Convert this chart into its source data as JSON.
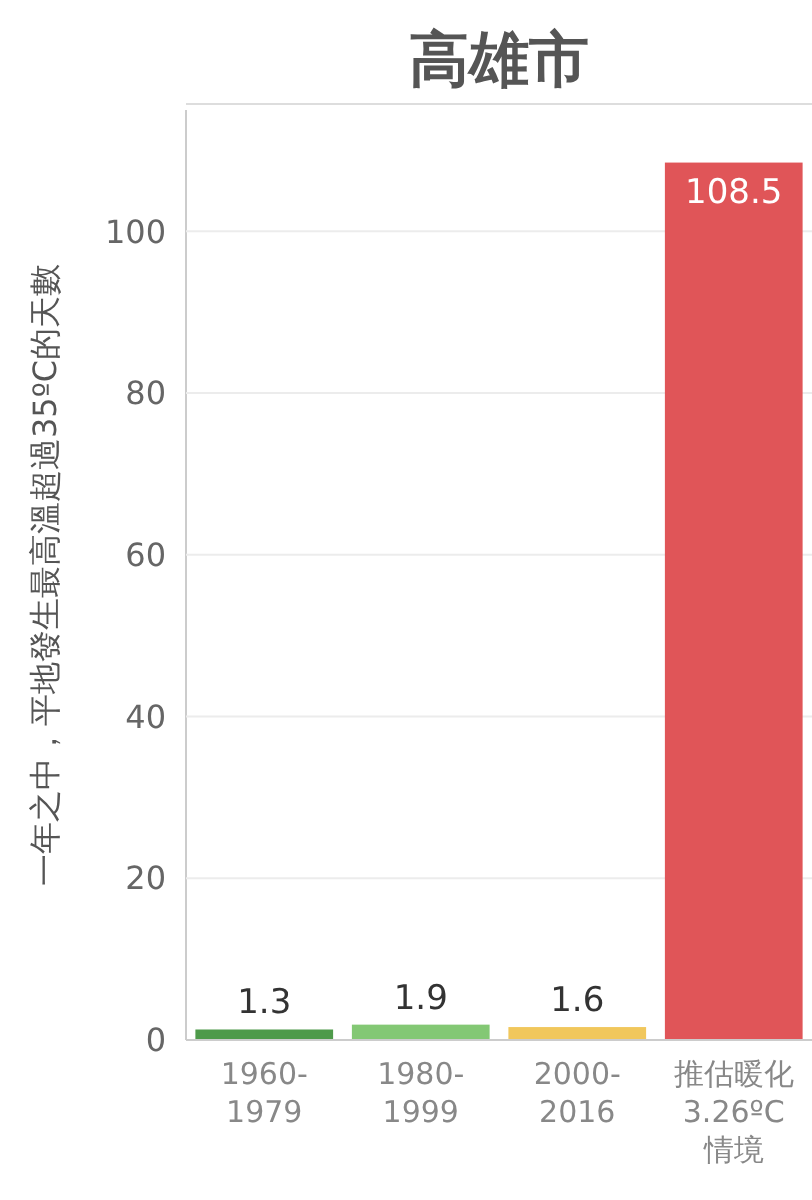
{
  "chart_data": {
    "type": "bar",
    "title": "高雄市",
    "ylabel": "一年之中，平地發生最高溫超過35ºC的天數",
    "categories": [
      "1960-\n1979",
      "1980-\n1999",
      "2000-\n2016",
      "推估暖化\n3.26ºC\n情境"
    ],
    "values": [
      1.3,
      1.9,
      1.6,
      108.5
    ],
    "colors": [
      "#4e9a4a",
      "#83c874",
      "#f1c75c",
      "#e05558"
    ],
    "ylim": [
      0,
      115
    ],
    "yticks": [
      0,
      20,
      40,
      60,
      80,
      100
    ],
    "grid": "y",
    "data_labels": true
  }
}
